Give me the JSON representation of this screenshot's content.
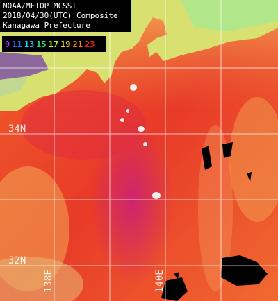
{
  "header": {
    "lines": [
      "NOAA/METOP MCSST",
      "2018/04/30(UTC) Composite",
      "Kanagawa Prefecture"
    ]
  },
  "colorbar": {
    "labels": [
      9,
      11,
      13,
      15,
      17,
      19,
      21,
      23
    ],
    "colors": [
      "#9a30ff",
      "#2a6cff",
      "#10d8ff",
      "#20e070",
      "#b8f020",
      "#ffd020",
      "#ff7a10",
      "#ff1a1a"
    ]
  },
  "grid": {
    "lat_labels": [
      "34N",
      "32N"
    ],
    "lon_labels": [
      "138E",
      "140E"
    ]
  }
}
